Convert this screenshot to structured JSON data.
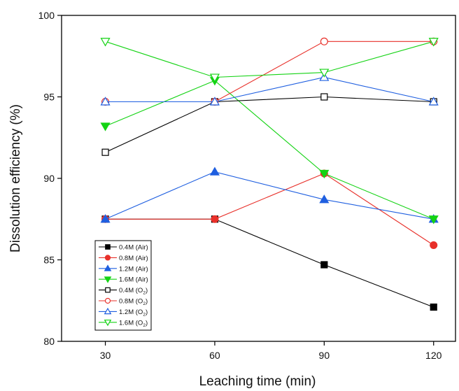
{
  "chart_data": {
    "type": "line",
    "xlabel": "Leaching time (min)",
    "ylabel": "Dissolution efficiency (%)",
    "xlim": [
      18,
      126
    ],
    "ylim": [
      80,
      100
    ],
    "x_ticks": [
      30,
      60,
      90,
      120
    ],
    "y_ticks": [
      80,
      85,
      90,
      95,
      100
    ],
    "grid": false,
    "legend_position": "bottom-left",
    "x": [
      30,
      60,
      90,
      120
    ],
    "series": [
      {
        "name": "0.4M (Air)",
        "legend_base": "0.4M (Air)",
        "legend_sub": "",
        "legend_tail": "",
        "color": "#000000",
        "marker": "square",
        "filled": true,
        "values": [
          87.5,
          87.5,
          84.7,
          82.1
        ]
      },
      {
        "name": "0.8M (Air)",
        "legend_base": "0.8M (Air)",
        "legend_sub": "",
        "legend_tail": "",
        "color": "#e8302a",
        "marker": "circle",
        "filled": true,
        "values": [
          87.5,
          87.5,
          90.3,
          85.9
        ]
      },
      {
        "name": "1.2M (Air)",
        "legend_base": "1.2M (Air)",
        "legend_sub": "",
        "legend_tail": "",
        "color": "#1f5fe0",
        "marker": "triangle-up",
        "filled": true,
        "values": [
          87.5,
          90.4,
          88.7,
          87.5
        ]
      },
      {
        "name": "1.6M (Air)",
        "legend_base": "1.6M (Air)",
        "legend_sub": "",
        "legend_tail": "",
        "color": "#14d314",
        "marker": "triangle-down",
        "filled": true,
        "values": [
          93.2,
          96.0,
          90.3,
          87.5
        ]
      },
      {
        "name": "0.4M (O2)",
        "legend_base": "0.4M (O",
        "legend_sub": "2",
        "legend_tail": ")",
        "color": "#000000",
        "marker": "square",
        "filled": false,
        "values": [
          91.6,
          94.7,
          95.0,
          94.7
        ]
      },
      {
        "name": "0.8M (O2)",
        "legend_base": "0.8M (O",
        "legend_sub": "2",
        "legend_tail": ")",
        "color": "#e8302a",
        "marker": "circle",
        "filled": false,
        "values": [
          94.7,
          94.7,
          98.4,
          98.4
        ]
      },
      {
        "name": "1.2M (O2)",
        "legend_base": "1.2M (O",
        "legend_sub": "2",
        "legend_tail": ")",
        "color": "#1f5fe0",
        "marker": "triangle-up",
        "filled": false,
        "values": [
          94.7,
          94.7,
          96.2,
          94.7
        ]
      },
      {
        "name": "1.6M (O2)",
        "legend_base": "1.6M (O",
        "legend_sub": "2",
        "legend_tail": ")",
        "color": "#14d314",
        "marker": "triangle-down",
        "filled": false,
        "values": [
          98.4,
          96.2,
          96.5,
          98.4
        ]
      }
    ]
  }
}
